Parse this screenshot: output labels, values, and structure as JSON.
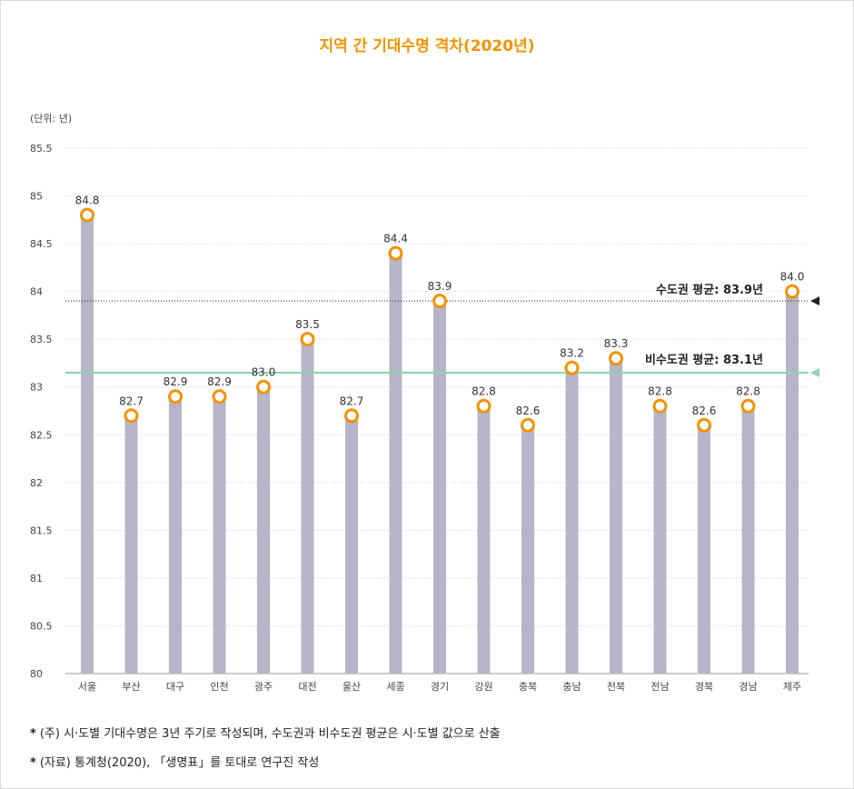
{
  "title": "지역 간 기대수명 격차(2020년)",
  "chart_data": {
    "type": "bar",
    "unit_label": "(단위: 년)",
    "categories": [
      "서울",
      "부산",
      "대구",
      "인천",
      "광주",
      "대전",
      "울산",
      "세종",
      "경기",
      "강원",
      "충북",
      "충남",
      "전북",
      "전남",
      "경북",
      "경남",
      "제주"
    ],
    "values": [
      84.8,
      82.7,
      82.9,
      82.9,
      83.0,
      83.5,
      82.7,
      84.4,
      83.9,
      82.8,
      82.6,
      83.2,
      83.3,
      82.8,
      82.6,
      82.8,
      84.0
    ],
    "value_labels": [
      "84.8",
      "82.7",
      "82.9",
      "82.9",
      "83.0",
      "83.5",
      "82.7",
      "84.4",
      "83.9",
      "82.8",
      "82.6",
      "83.2",
      "83.3",
      "82.8",
      "82.6",
      "82.8",
      "84.0"
    ],
    "ylim": [
      80,
      85.5
    ],
    "yticks": [
      "80",
      "80.5",
      "81",
      "81.5",
      "82",
      "82.5",
      "83",
      "83.5",
      "84",
      "84.5",
      "85",
      "85.5"
    ],
    "ytick_values": [
      80,
      80.5,
      81,
      81.5,
      82,
      82.5,
      83,
      83.5,
      84,
      84.5,
      85,
      85.5
    ],
    "grid": true,
    "reference_lines": [
      {
        "label": "수도권 평균: 83.9년",
        "value": 83.9,
        "style": "dotted",
        "color": "#222222"
      },
      {
        "label": "비수도권 평균: 83.1년",
        "value": 83.15,
        "style": "solid",
        "color": "#8fd1b0"
      }
    ]
  },
  "colors": {
    "bar": "#b6b5c9",
    "marker": "#f39200",
    "title": "#f39200"
  },
  "notes": [
    "(주) 시·도별 기대수명은 3년 주기로 작성되며, 수도권과 비수도권 평균은 시·도별 값으로 산출",
    "(자료) 통계청(2020), 「생명표」를 토대로 연구진 작성"
  ],
  "note_marker": "*"
}
